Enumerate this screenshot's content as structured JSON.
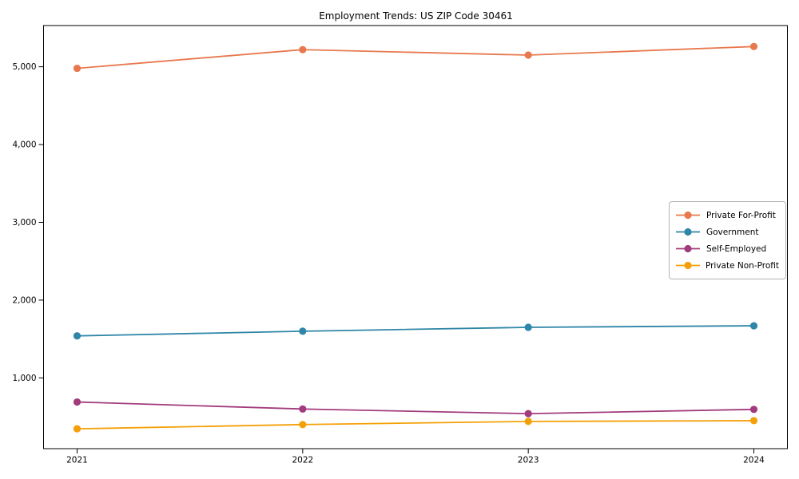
{
  "window": {
    "background": "#ffffff",
    "frame_color": "#000000"
  },
  "chart_data": {
    "type": "line",
    "title": "Employment Trends: US ZIP Code 30461",
    "categories": [
      "2021",
      "2022",
      "2023",
      "2024"
    ],
    "series": [
      {
        "name": "Private For-Profit",
        "color": "#e8794e",
        "values": [
          4980,
          5220,
          5150,
          5260
        ]
      },
      {
        "name": "Government",
        "color": "#2e86a8",
        "values": [
          1540,
          1600,
          1650,
          1670
        ]
      },
      {
        "name": "Self-Employed",
        "color": "#a23b7d",
        "values": [
          690,
          600,
          540,
          595
        ]
      },
      {
        "name": "Private Non-Profit",
        "color": "#f4a008",
        "values": [
          345,
          400,
          440,
          450
        ]
      }
    ],
    "xlabel": "",
    "ylabel": "",
    "ylim": [
      90,
      5530
    ],
    "yticks": [
      1000,
      2000,
      3000,
      4000,
      5000
    ],
    "grid": false,
    "legend_position": "center right",
    "marker": "circle",
    "line_width": 1.8,
    "marker_radius": 4.6
  }
}
